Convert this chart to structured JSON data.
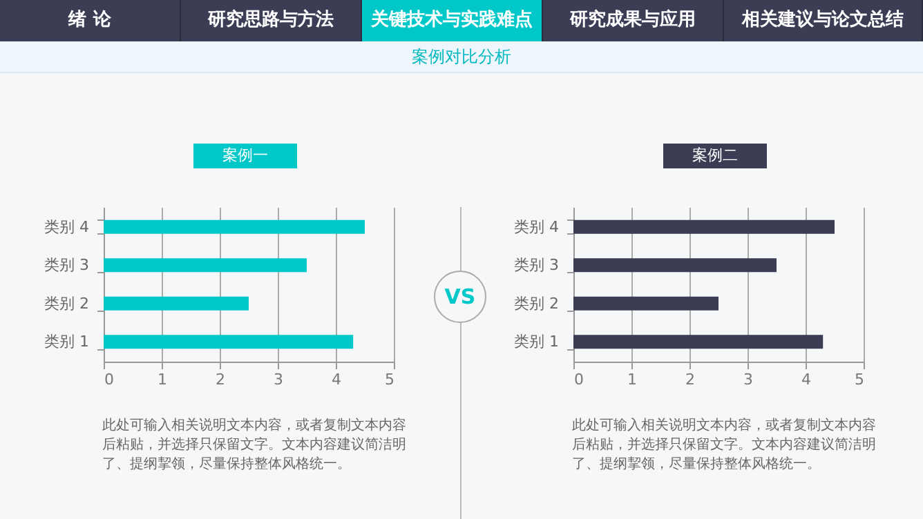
{
  "chart_data": [
    {
      "type": "other",
      "title": "案例对比分析",
      "annotations": [
        "绪 论",
        "研究思路与方法",
        "关键技术与实践难点",
        "研究成果与应用",
        "相关建议与论文总结",
        "VS"
      ]
    },
    {
      "type": "bar",
      "orientation": "horizontal",
      "title": "案例一",
      "categories": [
        "类别 4",
        "类别 3",
        "类别 2",
        "类别 1"
      ],
      "values": [
        4.5,
        3.5,
        2.5,
        4.3
      ],
      "color": "#00c8c8",
      "xlim": [
        0,
        5
      ],
      "xticks": [
        0,
        1,
        2,
        3,
        4,
        5
      ],
      "grid": "x",
      "annotations": [
        "此处可输入相关说明文本内容，或者复制文本内容后粘贴，并选择只保留文字。文本内容建议简洁明了、提纲挈领，尽量保持整体风格统一。"
      ]
    },
    {
      "type": "bar",
      "orientation": "horizontal",
      "title": "案例二",
      "categories": [
        "类别 4",
        "类别 3",
        "类别 2",
        "类别 1"
      ],
      "values": [
        4.5,
        3.5,
        2.5,
        4.3
      ],
      "color": "#3b3d55",
      "xlim": [
        0,
        5
      ],
      "xticks": [
        0,
        1,
        2,
        3,
        4,
        5
      ],
      "grid": "x",
      "annotations": [
        "此处可输入相关说明文本内容，或者复制文本内容后粘贴，并选择只保留文字。文本内容建议简洁明了、提纲挈领，尽量保持整体风格统一。"
      ]
    }
  ]
}
